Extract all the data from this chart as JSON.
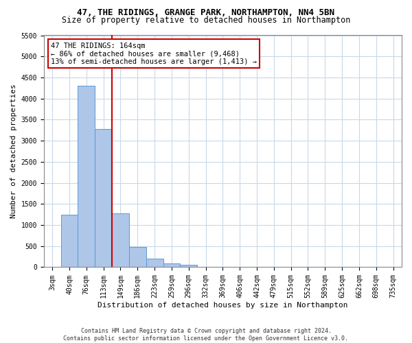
{
  "title_line1": "47, THE RIDINGS, GRANGE PARK, NORTHAMPTON, NN4 5BN",
  "title_line2": "Size of property relative to detached houses in Northampton",
  "xlabel": "Distribution of detached houses by size in Northampton",
  "ylabel": "Number of detached properties",
  "footer_line1": "Contains HM Land Registry data © Crown copyright and database right 2024.",
  "footer_line2": "Contains public sector information licensed under the Open Government Licence v3.0.",
  "bar_labels": [
    "3sqm",
    "40sqm",
    "76sqm",
    "113sqm",
    "149sqm",
    "186sqm",
    "223sqm",
    "259sqm",
    "296sqm",
    "332sqm",
    "369sqm",
    "406sqm",
    "442sqm",
    "479sqm",
    "515sqm",
    "552sqm",
    "589sqm",
    "625sqm",
    "662sqm",
    "698sqm",
    "735sqm"
  ],
  "bar_values": [
    0,
    1250,
    4300,
    3280,
    1270,
    480,
    200,
    90,
    60,
    0,
    0,
    0,
    0,
    0,
    0,
    0,
    0,
    0,
    0,
    0,
    0
  ],
  "bar_color": "#aec6e8",
  "bar_edge_color": "#5b9bd5",
  "ylim": [
    0,
    5500
  ],
  "yticks": [
    0,
    500,
    1000,
    1500,
    2000,
    2500,
    3000,
    3500,
    4000,
    4500,
    5000,
    5500
  ],
  "property_line_x": 3.5,
  "property_line_color": "#cc0000",
  "annotation_text_line1": "47 THE RIDINGS: 164sqm",
  "annotation_text_line2": "← 86% of detached houses are smaller (9,468)",
  "annotation_text_line3": "13% of semi-detached houses are larger (1,413) →",
  "annotation_box_color": "#ffffff",
  "annotation_box_edge": "#cc0000",
  "bg_color": "#ffffff",
  "grid_color": "#c8d8e8",
  "title_fontsize": 9,
  "subtitle_fontsize": 8.5,
  "axis_label_fontsize": 8,
  "tick_fontsize": 7,
  "annotation_fontsize": 7.5
}
